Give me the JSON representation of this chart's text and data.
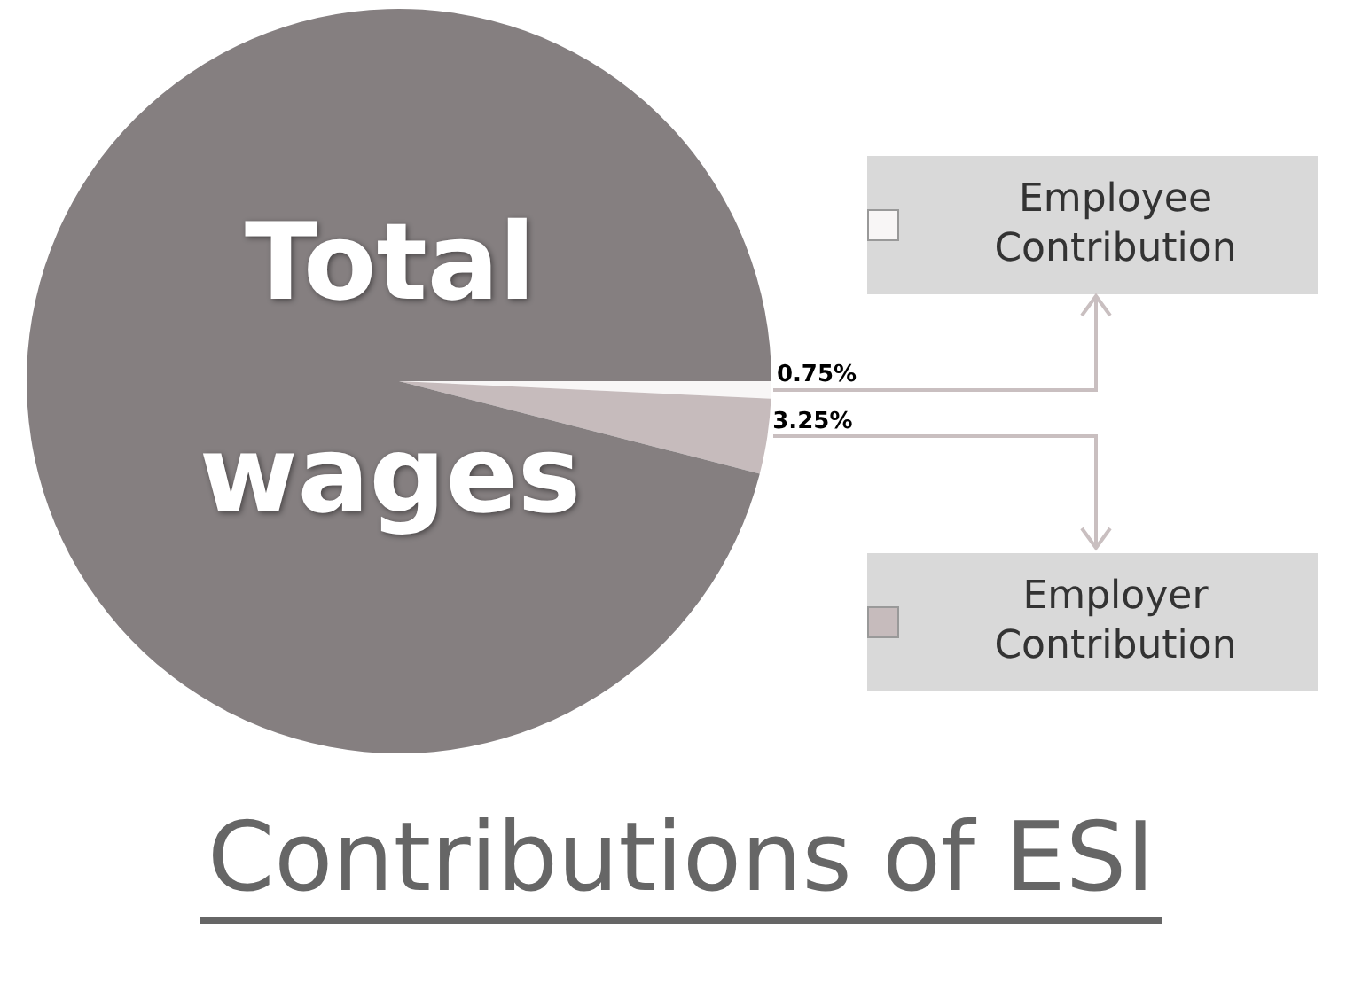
{
  "chart_data": {
    "type": "pie",
    "title": "Contributions of ESI",
    "categories": [
      "Employee Contribution",
      "Employer Contribution",
      "Total wages"
    ],
    "values": [
      0.75,
      3.25,
      96
    ],
    "colors": [
      "#f8f6f6",
      "#c6bbbc",
      "#857f80"
    ],
    "value_labels": [
      "0.75%",
      "3.25%",
      null
    ],
    "legend": "right"
  }
}
